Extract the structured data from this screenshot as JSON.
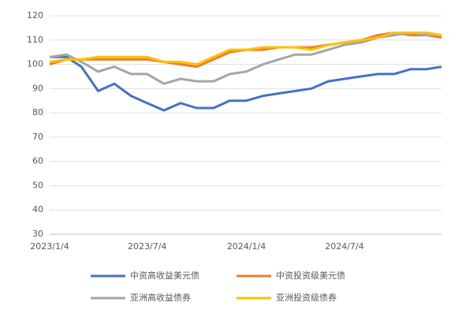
{
  "chart_data": {
    "type": "line",
    "x": [
      "2023/1/4",
      "2023/2/4",
      "2023/3/4",
      "2023/4/4",
      "2023/5/4",
      "2023/6/4",
      "2023/7/4",
      "2023/8/4",
      "2023/9/4",
      "2023/10/4",
      "2023/11/4",
      "2023/12/4",
      "2024/1/4",
      "2024/2/4",
      "2024/3/4",
      "2024/4/4",
      "2024/5/4",
      "2024/6/4",
      "2024/7/4",
      "2024/8/4",
      "2024/9/4",
      "2024/10/4",
      "2024/11/4",
      "2024/12/4",
      "2024/12/31"
    ],
    "series": [
      {
        "name": "中资高收益美元债",
        "color": "#4472c4",
        "values": [
          103,
          103,
          99,
          89,
          92,
          87,
          84,
          81,
          84,
          82,
          82,
          85,
          85,
          87,
          88,
          89,
          90,
          93,
          94,
          95,
          96,
          96,
          98,
          98,
          99
        ]
      },
      {
        "name": "中资投资级美元债",
        "color": "#ed7d31",
        "values": [
          100,
          102,
          102,
          102,
          102,
          102,
          102,
          101,
          100,
          99,
          102,
          105,
          106,
          106,
          107,
          107,
          107,
          108,
          109,
          110,
          112,
          113,
          112,
          112,
          111
        ]
      },
      {
        "name": "亚洲高收益债券",
        "color": "#a5a5a5",
        "values": [
          103,
          104,
          101,
          97,
          99,
          96,
          96,
          92,
          94,
          93,
          93,
          96,
          97,
          100,
          102,
          104,
          104,
          106,
          108,
          109,
          111,
          112,
          113,
          112,
          112
        ]
      },
      {
        "name": "亚洲投资级债券",
        "color": "#ffc000",
        "values": [
          101,
          102,
          102,
          103,
          103,
          103,
          103,
          101,
          101,
          100,
          103,
          106,
          106,
          107,
          107,
          107,
          106,
          108,
          109,
          110,
          111,
          113,
          113,
          113,
          112
        ]
      }
    ],
    "xlim": [
      "2023/1/4",
      "2024/12/31"
    ],
    "xticks": [
      "2023/1/4",
      "2023/7/4",
      "2024/1/4",
      "2024/7/4"
    ],
    "ylim": [
      30,
      120
    ],
    "yticks": [
      30,
      40,
      50,
      60,
      70,
      80,
      90,
      100,
      110,
      120
    ],
    "grid": true
  }
}
